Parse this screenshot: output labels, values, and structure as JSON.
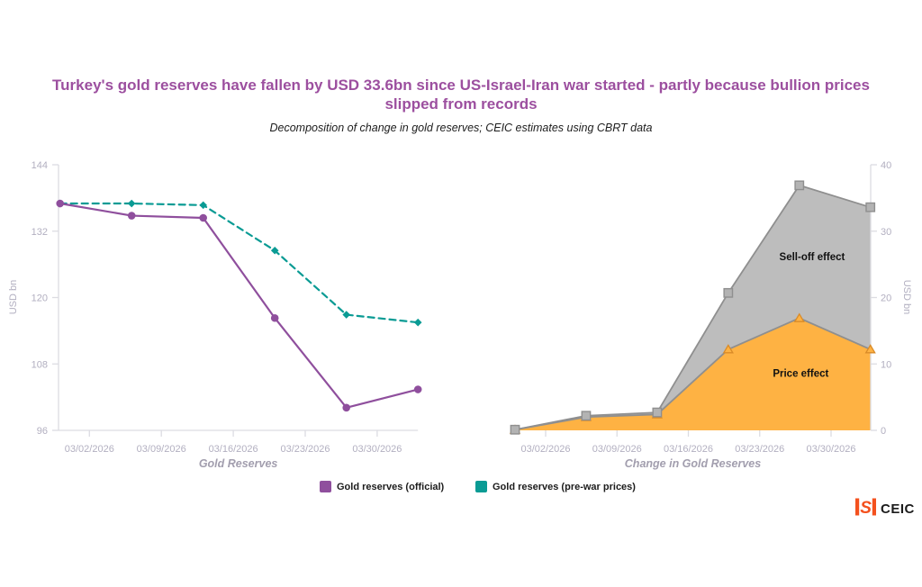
{
  "header": {
    "title": "Turkey's gold reserves have fallen by USD 33.6bn since US-Israel-Iran war started - partly because bullion prices slipped from records",
    "subtitle": "Decomposition of change in gold reserves; CEIC estimates using CBRT data"
  },
  "colors": {
    "title_purple": "#9c4f9f",
    "official_purple": "#8f4f9d",
    "prewar_teal": "#0a9b94",
    "price_orange": "#feb243",
    "price_orange_marker_border": "#d98b28",
    "selloff_gray": "#bdbdbd",
    "selloff_marker_fill": "#b3b3b3",
    "area_line_gray": "#8f8f8f",
    "axis_line": "#dcdce2",
    "tick_label": "#b2afc0",
    "axis_title": "#a29eae",
    "annotation_text": "#111111",
    "logo_orange": "#f4511e"
  },
  "legend": [
    {
      "label": "Gold reserves (official)",
      "color": "#8f4f9d"
    },
    {
      "label": "Gold reserves (pre-war prices)",
      "color": "#0a9b94"
    }
  ],
  "branding": {
    "logo_text": "CEIC",
    "logo_mark": "ISI"
  },
  "chart_data": [
    {
      "type": "line",
      "title": "Gold Reserves",
      "ylabel": "USD bn",
      "ylim": [
        96,
        144
      ],
      "yticks": [
        96,
        108,
        120,
        132,
        144
      ],
      "x_tick_labels": [
        "03/02/2026",
        "03/09/2026",
        "03/16/2026",
        "03/23/2026",
        "03/30/2026"
      ],
      "grid": false,
      "legend_position": "bottom",
      "series": [
        {
          "name": "Gold reserves (pre-war prices)",
          "color": "#0a9b94",
          "line_style": "dashed",
          "marker": "diamond",
          "values": [
            137.0,
            137.0,
            136.7,
            128.5,
            116.9,
            115.5
          ]
        },
        {
          "name": "Gold reserves (official)",
          "color": "#8f4f9d",
          "line_style": "solid",
          "marker": "circle",
          "values": [
            137.0,
            134.8,
            134.4,
            116.3,
            100.1,
            103.4
          ]
        }
      ]
    },
    {
      "type": "area",
      "title": "Change in Gold Reserves",
      "ylabel": "USD bn",
      "ylim": [
        0,
        40
      ],
      "yticks": [
        0,
        10,
        20,
        30,
        40
      ],
      "x_tick_labels": [
        "03/02/2026",
        "03/09/2026",
        "03/16/2026",
        "03/23/2026",
        "03/30/2026"
      ],
      "grid": false,
      "stacked": true,
      "series": [
        {
          "name": "Price effect",
          "color": "#feb243",
          "marker": "triangle",
          "values": [
            0.1,
            2.0,
            2.4,
            12.2,
            16.9,
            12.2
          ]
        },
        {
          "name": "Sell-off effect",
          "color": "#bdbdbd",
          "marker": "square",
          "values": [
            0.0,
            0.2,
            0.3,
            8.5,
            20.0,
            21.4
          ]
        }
      ],
      "annotations": [
        {
          "text": "Sell-off effect",
          "x_index": 4.18,
          "y_value": 26.2
        },
        {
          "text": "Price effect",
          "x_index": 4.02,
          "y_value": 8.6
        }
      ]
    }
  ]
}
